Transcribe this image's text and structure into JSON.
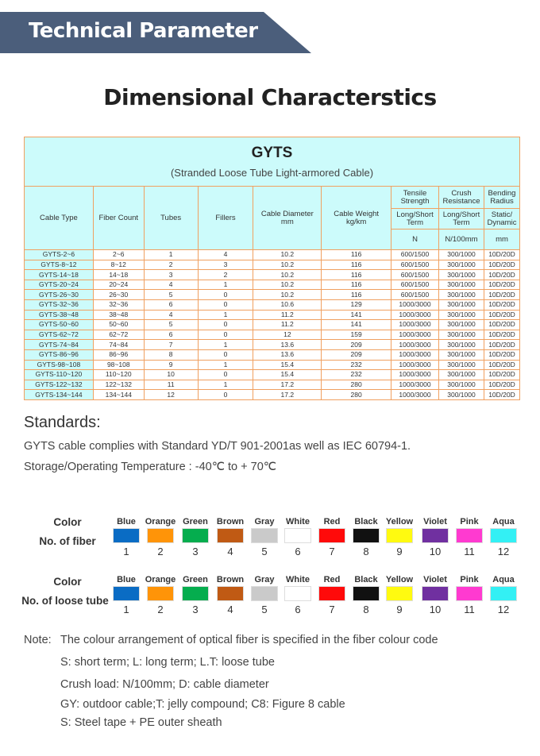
{
  "banner": "Technical Parameter",
  "title": "Dimensional Characterstics",
  "table": {
    "model": "GYTS",
    "subtitle": "(Stranded Loose Tube Light-armored Cable)",
    "headers": {
      "type": "Cable Type",
      "fiber": "Fiber Count",
      "tubes": "Tubes",
      "fillers": "Fillers",
      "diam": "Cable Diameter",
      "diam_unit": "mm",
      "weight": "Cable Weight",
      "weight_unit": "kg/km",
      "tensile": "Tensile Strength",
      "crush": "Crush Resistance",
      "bend": "Bending Radius",
      "tensile_sub": "Long/Short Term",
      "crush_sub": "Long/Short Term",
      "bend_sub": "Static/ Dynamic",
      "tensile_unit": "N",
      "crush_unit": "N/100mm",
      "bend_unit": "mm"
    },
    "rows": [
      [
        "GYTS-2~6",
        "2~6",
        "1",
        "4",
        "10.2",
        "116",
        "600/1500",
        "300/1000",
        "10D/20D"
      ],
      [
        "GYTS-8~12",
        "8~12",
        "2",
        "3",
        "10.2",
        "116",
        "600/1500",
        "300/1000",
        "10D/20D"
      ],
      [
        "GYTS-14~18",
        "14~18",
        "3",
        "2",
        "10.2",
        "116",
        "600/1500",
        "300/1000",
        "10D/20D"
      ],
      [
        "GYTS-20~24",
        "20~24",
        "4",
        "1",
        "10.2",
        "116",
        "600/1500",
        "300/1000",
        "10D/20D"
      ],
      [
        "GYTS-26~30",
        "26~30",
        "5",
        "0",
        "10.2",
        "116",
        "600/1500",
        "300/1000",
        "10D/20D"
      ],
      [
        "GYTS-32~36",
        "32~36",
        "6",
        "0",
        "10.6",
        "129",
        "1000/3000",
        "300/1000",
        "10D/20D"
      ],
      [
        "GYTS-38~48",
        "38~48",
        "4",
        "1",
        "11.2",
        "141",
        "1000/3000",
        "300/1000",
        "10D/20D"
      ],
      [
        "GYTS-50~60",
        "50~60",
        "5",
        "0",
        "11.2",
        "141",
        "1000/3000",
        "300/1000",
        "10D/20D"
      ],
      [
        "GYTS-62~72",
        "62~72",
        "6",
        "0",
        "12",
        "159",
        "1000/3000",
        "300/1000",
        "10D/20D"
      ],
      [
        "GYTS-74~84",
        "74~84",
        "7",
        "1",
        "13.6",
        "209",
        "1000/3000",
        "300/1000",
        "10D/20D"
      ],
      [
        "GYTS-86~96",
        "86~96",
        "8",
        "0",
        "13.6",
        "209",
        "1000/3000",
        "300/1000",
        "10D/20D"
      ],
      [
        "GYTS-98~108",
        "98~108",
        "9",
        "1",
        "15.4",
        "232",
        "1000/3000",
        "300/1000",
        "10D/20D"
      ],
      [
        "GYTS-110~120",
        "110~120",
        "10",
        "0",
        "15.4",
        "232",
        "1000/3000",
        "300/1000",
        "10D/20D"
      ],
      [
        "GYTS-122~132",
        "122~132",
        "11",
        "1",
        "17.2",
        "280",
        "1000/3000",
        "300/1000",
        "10D/20D"
      ],
      [
        "GYTS-134~144",
        "134~144",
        "12",
        "0",
        "17.2",
        "280",
        "1000/3000",
        "300/1000",
        "10D/20D"
      ]
    ]
  },
  "standards": {
    "heading": "Standards:",
    "line1": "GYTS cable complies with Standard YD/T 901-2001as well as IEC 60794-1.",
    "line2": "Storage/Operating Temperature : -40℃ to + 70℃"
  },
  "colors": {
    "fiber_label1": "Color",
    "fiber_label2": "No. of fiber",
    "tube_label1": "Color",
    "tube_label2": "No. of loose tube",
    "items": [
      {
        "name": "Blue",
        "num": "1",
        "hex": "#0a6cc4"
      },
      {
        "name": "Orange",
        "num": "2",
        "hex": "#ff9408"
      },
      {
        "name": "Green",
        "num": "3",
        "hex": "#05ad4e"
      },
      {
        "name": "Brown",
        "num": "4",
        "hex": "#c05a14"
      },
      {
        "name": "Gray",
        "num": "5",
        "hex": "#cacaca"
      },
      {
        "name": "White",
        "num": "6",
        "hex": "#ffffff"
      },
      {
        "name": "Red",
        "num": "7",
        "hex": "#ff0a0a"
      },
      {
        "name": "Black",
        "num": "8",
        "hex": "#111111"
      },
      {
        "name": "Yellow",
        "num": "9",
        "hex": "#fffa10"
      },
      {
        "name": "Violet",
        "num": "10",
        "hex": "#7030a0"
      },
      {
        "name": "Pink",
        "num": "11",
        "hex": "#ff3ad0"
      },
      {
        "name": "Aqua",
        "num": "12",
        "hex": "#33f0f4"
      }
    ]
  },
  "notes": {
    "label": "Note:",
    "lines": [
      "The colour arrangement of optical fiber is specified in the fiber colour code",
      "S: short term; L: long term; L.T: loose tube",
      "Crush load: N/100mm; D:  cable diameter",
      "GY:  outdoor cable;T: jelly compound; C8: Figure 8 cable",
      "S:  Steel tape + PE outer sheath"
    ]
  }
}
